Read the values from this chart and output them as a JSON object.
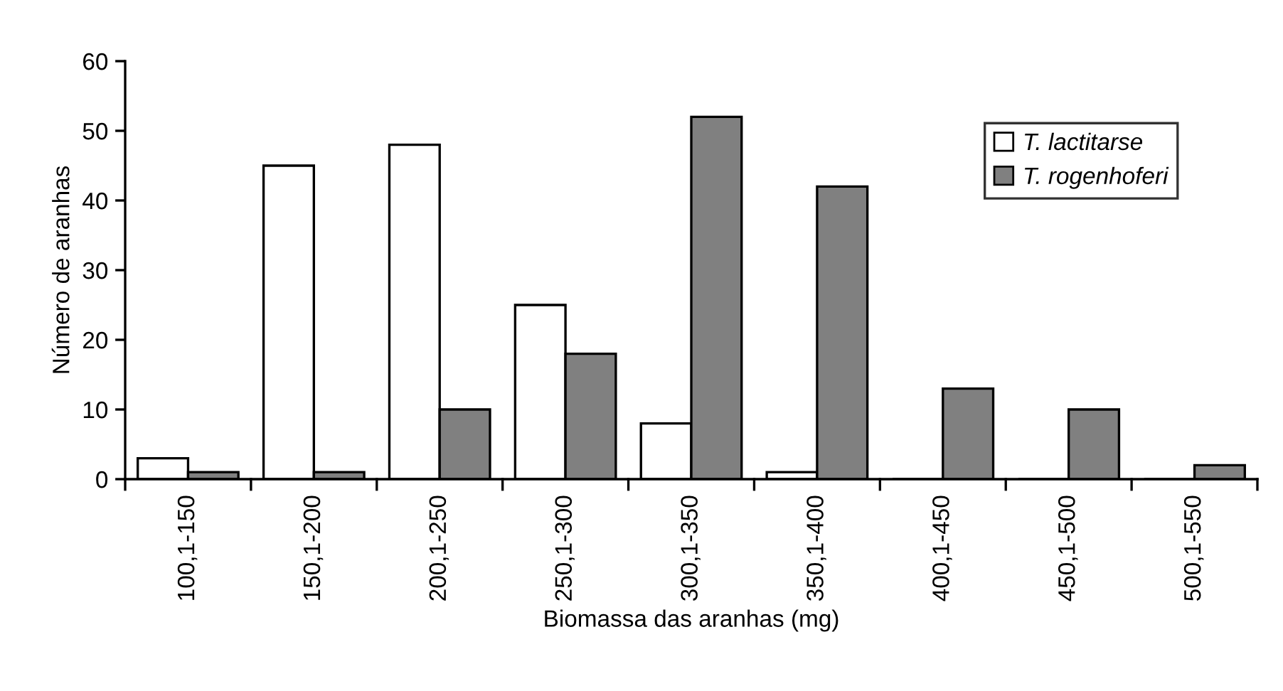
{
  "chart_data": {
    "type": "bar",
    "xlabel": "Biomassa das aranhas (mg)",
    "ylabel": "Número de aranhas",
    "categories": [
      "100,1-150",
      "150,1-200",
      "200,1-250",
      "250,1-300",
      "300,1-350",
      "350,1-400",
      "400,1-450",
      "450,1-500",
      "500,1-550"
    ],
    "series": [
      {
        "name": "T. lactitarse",
        "color": "#ffffff",
        "values": [
          3,
          45,
          48,
          25,
          8,
          1,
          0,
          0,
          0
        ]
      },
      {
        "name": "T. rogenhoferi",
        "color": "#808080",
        "values": [
          1,
          1,
          10,
          18,
          52,
          42,
          13,
          10,
          2
        ]
      }
    ],
    "ylim": [
      0,
      60
    ],
    "yticks": [
      0,
      10,
      20,
      30,
      40,
      50,
      60
    ],
    "grid": false,
    "legend": "top right"
  }
}
